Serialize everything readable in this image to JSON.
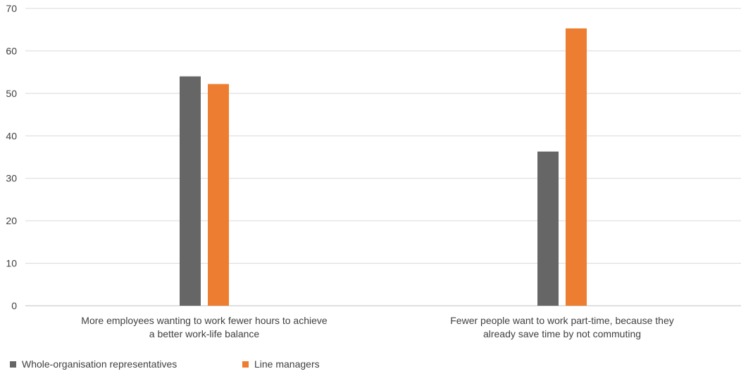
{
  "chart_data": {
    "type": "bar",
    "categories": [
      [
        "More employees wanting to work fewer hours to achieve",
        "a better work-life balance"
      ],
      [
        "Fewer people want to work part-time, because they",
        "already save time by not commuting"
      ]
    ],
    "series": [
      {
        "name": "Whole-organisation representatives",
        "values": [
          54,
          36.3
        ],
        "color": "#666666"
      },
      {
        "name": "Line managers",
        "values": [
          52.2,
          65.3
        ],
        "color": "#ED7D31"
      }
    ],
    "yticks": [
      0,
      10,
      20,
      30,
      40,
      50,
      60,
      70
    ],
    "ylim": [
      0,
      70
    ],
    "grid": true,
    "legend": "bottom-left",
    "title": "",
    "xlabel": "",
    "ylabel": ""
  }
}
